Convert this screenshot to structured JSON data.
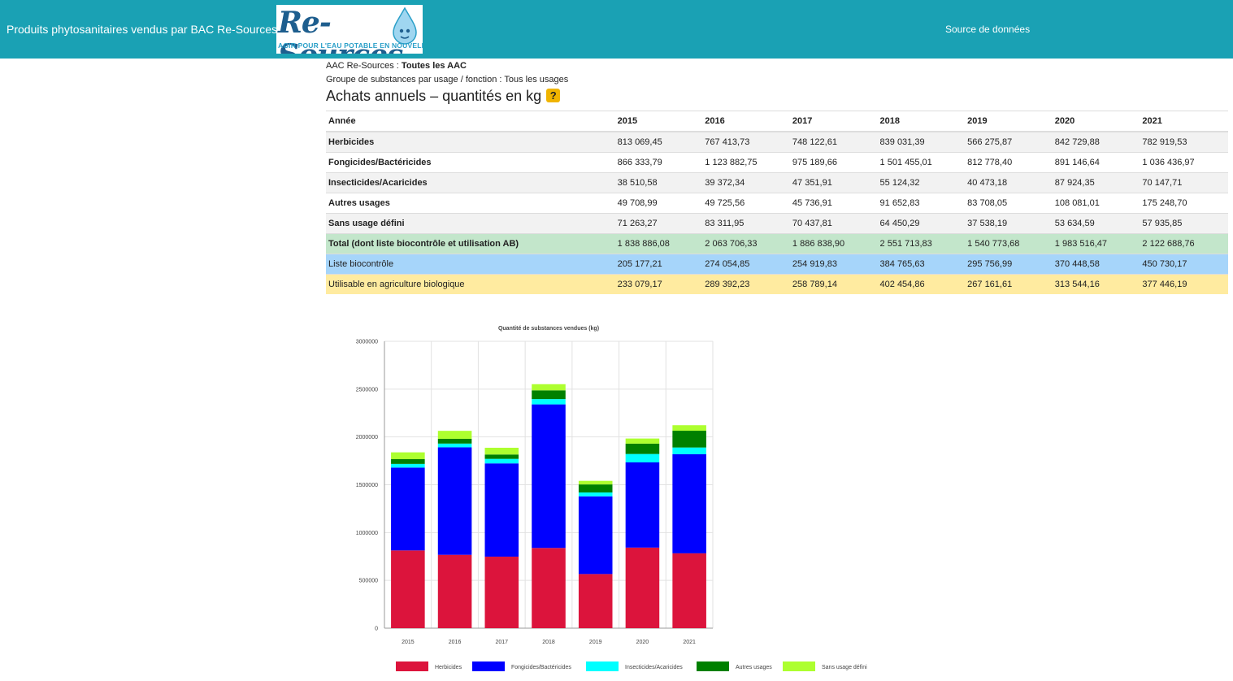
{
  "header": {
    "brand": "Produits phytosanitaires vendus par BAC Re-Sources",
    "logo_text": "Re-Sources",
    "logo_tagline": "AGIR POUR L'EAU POTABLE EN NOUVELLE-AQUITAINE",
    "nav_link": "Source de données"
  },
  "filters": {
    "aac_label": "AAC Re-Sources : ",
    "aac_value": "Toutes les AAC",
    "group_label": "Groupe de substances par usage / fonction : ",
    "group_value": "Tous les usages"
  },
  "section": {
    "title": "Achats annuels – quantités en kg",
    "help": "?"
  },
  "table": {
    "header_label": "Année",
    "years": [
      "2015",
      "2016",
      "2017",
      "2018",
      "2019",
      "2020",
      "2021"
    ],
    "rows": [
      {
        "label": "Herbicides",
        "values": [
          "813 069,45",
          "767 413,73",
          "748 122,61",
          "839 031,39",
          "566 275,87",
          "842 729,88",
          "782 919,53"
        ]
      },
      {
        "label": "Fongicides/Bactéricides",
        "values": [
          "866 333,79",
          "1 123 882,75",
          "975 189,66",
          "1 501 455,01",
          "812 778,40",
          "891 146,64",
          "1 036 436,97"
        ]
      },
      {
        "label": "Insecticides/Acaricides",
        "values": [
          "38 510,58",
          "39 372,34",
          "47 351,91",
          "55 124,32",
          "40 473,18",
          "87 924,35",
          "70 147,71"
        ]
      },
      {
        "label": "Autres usages",
        "values": [
          "49 708,99",
          "49 725,56",
          "45 736,91",
          "91 652,83",
          "83 708,05",
          "108 081,01",
          "175 248,70"
        ]
      },
      {
        "label": "Sans usage défini",
        "values": [
          "71 263,27",
          "83 311,95",
          "70 437,81",
          "64 450,29",
          "37 538,19",
          "53 634,59",
          "57 935,85"
        ]
      },
      {
        "label": "Total (dont liste biocontrôle et utilisation AB)",
        "values": [
          "1 838 886,08",
          "2 063 706,33",
          "1 886 838,90",
          "2 551 713,83",
          "1 540 773,68",
          "1 983 516,47",
          "2 122 688,76"
        ],
        "kind": "total"
      },
      {
        "label": "Liste biocontrôle",
        "values": [
          "205 177,21",
          "274 054,85",
          "254 919,83",
          "384 765,63",
          "295 756,99",
          "370 448,58",
          "450 730,17"
        ],
        "kind": "bio"
      },
      {
        "label": "Utilisable en agriculture biologique",
        "values": [
          "233 079,17",
          "289 392,23",
          "258 789,14",
          "402 454,86",
          "267 161,61",
          "313 544,16",
          "377 446,19"
        ],
        "kind": "ab"
      }
    ]
  },
  "chart_data": {
    "type": "bar",
    "stacked": true,
    "title": "Quantité de substances vendues (kg)",
    "categories": [
      "2015",
      "2016",
      "2017",
      "2018",
      "2019",
      "2020",
      "2021"
    ],
    "ylim": [
      0,
      3000000
    ],
    "yticks": [
      "0",
      "500000",
      "1000000",
      "1500000",
      "2000000",
      "2500000",
      "3000000"
    ],
    "grid": true,
    "legend_position": "bottom",
    "series": [
      {
        "name": "Herbicides",
        "color": "#dc143c",
        "values": [
          813069.45,
          767413.73,
          748122.61,
          839031.39,
          566275.87,
          842729.88,
          782919.53
        ]
      },
      {
        "name": "Fongicides/Bactéricides",
        "color": "#0000ff",
        "values": [
          866333.79,
          1123882.75,
          975189.66,
          1501455.01,
          812778.4,
          891146.64,
          1036436.97
        ]
      },
      {
        "name": "Insecticides/Acaricides",
        "color": "#00ffff",
        "values": [
          38510.58,
          39372.34,
          47351.91,
          55124.32,
          40473.18,
          87924.35,
          70147.71
        ]
      },
      {
        "name": "Autres usages",
        "color": "#008000",
        "values": [
          49708.99,
          49725.56,
          45736.91,
          91652.83,
          83708.05,
          108081.01,
          175248.7
        ]
      },
      {
        "name": "Sans usage défini",
        "color": "#adff2f",
        "values": [
          71263.27,
          83311.95,
          70437.81,
          64450.29,
          37538.19,
          53634.59,
          57935.85
        ]
      }
    ]
  }
}
